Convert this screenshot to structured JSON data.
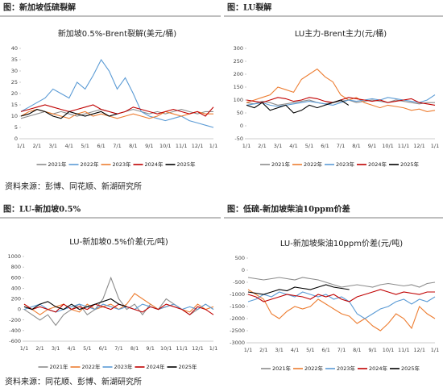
{
  "sources": [
    "资料来源：彭博、同花顺、新湖研究所",
    "资料来源：同花顺、彭博、新湖研究所"
  ],
  "chart_data": [
    {
      "type": "line",
      "panel_title": "图：新加坡低硫裂解",
      "title": "新加坡0.5%-Brent裂解(美元/桶)",
      "categories": [
        "1/1",
        null,
        "2/1",
        null,
        "3/1",
        null,
        "4/1",
        null,
        "5/1",
        null,
        "6/1",
        null,
        "7/1",
        null,
        "8/1",
        null,
        "9/1",
        null,
        "10/1",
        null,
        "11/1",
        null,
        "12/1",
        null,
        "1/1"
      ],
      "ylim": [
        0,
        40
      ],
      "yticks": [
        0,
        5,
        10,
        15,
        20,
        25,
        30,
        35,
        40
      ],
      "series": [
        {
          "name": "2021年",
          "color": "#8c8c8c",
          "values": [
            9,
            10,
            11,
            12,
            11,
            12,
            11,
            10,
            11,
            12,
            13,
            12,
            11,
            12,
            13,
            12,
            11,
            12,
            11,
            12,
            13,
            12,
            11,
            12,
            12
          ]
        },
        {
          "name": "2022年",
          "color": "#5b9bd5",
          "values": [
            12,
            14,
            16,
            18,
            22,
            20,
            18,
            25,
            22,
            28,
            35,
            30,
            22,
            27,
            20,
            12,
            10,
            9,
            8,
            9,
            10,
            8,
            7,
            6,
            5
          ]
        },
        {
          "name": "2023年",
          "color": "#ed7d31",
          "values": [
            10,
            12,
            13,
            12,
            11,
            10,
            9,
            11,
            12,
            10,
            11,
            10,
            9,
            10,
            11,
            10,
            9,
            10,
            12,
            11,
            10,
            11,
            12,
            11,
            11
          ]
        },
        {
          "name": "2024年",
          "color": "#c00000",
          "values": [
            12,
            13,
            14,
            15,
            14,
            13,
            12,
            13,
            14,
            15,
            13,
            12,
            11,
            12,
            14,
            13,
            12,
            11,
            12,
            13,
            12,
            11,
            12,
            10,
            14
          ]
        },
        {
          "name": "2025年",
          "color": "#000000",
          "values": [
            10,
            11,
            13,
            12,
            10,
            9,
            12,
            11,
            10,
            11,
            12,
            10,
            11,
            null,
            null,
            null,
            null,
            null,
            null,
            null,
            null,
            null,
            null,
            null,
            null
          ]
        }
      ]
    },
    {
      "type": "line",
      "panel_title": "图：LU裂解",
      "title": "LU主力-Brent主力(元/桶)",
      "categories": [
        "1/1",
        null,
        "2/1",
        null,
        "3/1",
        null,
        "4/1",
        null,
        "5/1",
        null,
        "6/1",
        null,
        "7/1",
        null,
        "8/1",
        null,
        "9/1",
        null,
        "10/1",
        null,
        "11/1",
        null,
        "12/1",
        null,
        "1/1"
      ],
      "ylim": [
        -50,
        300
      ],
      "yticks": [
        -50,
        0,
        50,
        100,
        150,
        200,
        250,
        300
      ],
      "series": [
        {
          "name": "2021年",
          "color": "#8c8c8c",
          "values": [
            90,
            85,
            95,
            90,
            80,
            85,
            90,
            95,
            100,
            90,
            85,
            90,
            95,
            100,
            90,
            95,
            100,
            95,
            90,
            100,
            95,
            90,
            85,
            90,
            90
          ]
        },
        {
          "name": "2022年",
          "color": "#ed7d31",
          "values": [
            90,
            100,
            110,
            120,
            150,
            140,
            130,
            180,
            200,
            220,
            190,
            170,
            120,
            100,
            110,
            90,
            80,
            70,
            80,
            75,
            70,
            60,
            65,
            55,
            60
          ]
        },
        {
          "name": "2023年",
          "color": "#5b9bd5",
          "values": [
            80,
            85,
            90,
            80,
            75,
            80,
            85,
            90,
            95,
            90,
            85,
            80,
            90,
            100,
            95,
            100,
            105,
            100,
            110,
            105,
            100,
            95,
            90,
            100,
            120
          ]
        },
        {
          "name": "2024年",
          "color": "#c00000",
          "values": [
            100,
            95,
            90,
            100,
            110,
            105,
            95,
            100,
            110,
            105,
            95,
            90,
            100,
            110,
            105,
            100,
            95,
            100,
            90,
            95,
            100,
            105,
            90,
            85,
            80
          ]
        },
        {
          "name": "2025年",
          "color": "#000000",
          "values": [
            80,
            70,
            90,
            60,
            70,
            80,
            50,
            60,
            80,
            70,
            80,
            90,
            100,
            80,
            null,
            null,
            null,
            null,
            null,
            null,
            null,
            null,
            null,
            null,
            null
          ]
        }
      ]
    },
    {
      "type": "line",
      "panel_title": "图：LU-新加坡0.5%",
      "title": "LU-新加坡0.5%价差(元/吨)",
      "categories": [
        "1/1",
        null,
        "2/1",
        null,
        "3/1",
        null,
        "4/1",
        null,
        "5/1",
        null,
        "6/1",
        null,
        "7/1",
        null,
        "8/1",
        null,
        "9/1",
        null,
        "10/1",
        null,
        "11/1",
        null,
        "12/1",
        null,
        "1/1"
      ],
      "ylim": [
        -600,
        1000
      ],
      "yticks": [
        -600,
        -400,
        -200,
        0,
        200,
        400,
        600,
        800,
        1000
      ],
      "series": [
        {
          "name": "2021年",
          "color": "#8c8c8c",
          "values": [
            0,
            -100,
            -200,
            -100,
            -300,
            -100,
            0,
            100,
            -100,
            0,
            200,
            600,
            200,
            0,
            100,
            -100,
            100,
            0,
            200,
            100,
            0,
            -100,
            0,
            100,
            0
          ]
        },
        {
          "name": "2022年",
          "color": "#ed7d31",
          "values": [
            100,
            0,
            -100,
            0,
            50,
            100,
            0,
            -50,
            100,
            0,
            50,
            100,
            0,
            100,
            300,
            200,
            100,
            0,
            50,
            100,
            0,
            -50,
            100,
            0,
            50
          ]
        },
        {
          "name": "2023年",
          "color": "#5b9bd5",
          "values": [
            0,
            50,
            100,
            0,
            -50,
            0,
            50,
            100,
            50,
            0,
            100,
            50,
            0,
            50,
            0,
            100,
            50,
            0,
            50,
            100,
            0,
            50,
            0,
            100,
            0
          ]
        },
        {
          "name": "2024年",
          "color": "#c00000",
          "values": [
            100,
            0,
            50,
            0,
            -50,
            100,
            0,
            50,
            0,
            100,
            50,
            0,
            100,
            50,
            0,
            -50,
            50,
            0,
            100,
            50,
            0,
            -100,
            50,
            0,
            -100
          ]
        },
        {
          "name": "2025年",
          "color": "#000000",
          "values": [
            50,
            0,
            100,
            150,
            50,
            0,
            100,
            0,
            50,
            100,
            150,
            200,
            100,
            50,
            null,
            null,
            null,
            null,
            null,
            null,
            null,
            null,
            null,
            null,
            null
          ]
        }
      ]
    },
    {
      "type": "line",
      "panel_title": "图：低硫-新加坡柴油10ppm价差",
      "title": "LU-新加坡柴油10ppm价差(元/吨)",
      "categories": [
        "1/1",
        null,
        "2/1",
        null,
        "3/1",
        null,
        "4/1",
        null,
        "5/1",
        null,
        "6/1",
        null,
        "7/1",
        null,
        "8/1",
        null,
        "9/1",
        null,
        "10/1",
        null,
        "11/1",
        null,
        "12/1",
        null,
        "1/1"
      ],
      "ylim": [
        -3000,
        500
      ],
      "yticks": [
        -3000,
        -2500,
        -2000,
        -1500,
        -1000,
        -500,
        0,
        500
      ],
      "series": [
        {
          "name": "2021年",
          "color": "#8c8c8c",
          "values": [
            -300,
            -350,
            -400,
            -350,
            -300,
            -350,
            -400,
            -300,
            -350,
            -400,
            -500,
            -600,
            -700,
            -650,
            -600,
            -650,
            -700,
            -600,
            -550,
            -600,
            -650,
            -600,
            -700,
            -550,
            -500
          ]
        },
        {
          "name": "2022年",
          "color": "#ed7d31",
          "values": [
            -800,
            -1000,
            -1200,
            -1800,
            -2000,
            -1700,
            -1500,
            -1600,
            -1500,
            -1200,
            -1400,
            -1600,
            -1800,
            -1900,
            -2200,
            -2000,
            -2300,
            -2500,
            -2200,
            -1800,
            -2000,
            -2400,
            -1500,
            -1800,
            -2000
          ]
        },
        {
          "name": "2023年",
          "color": "#5b9bd5",
          "values": [
            -1300,
            -1200,
            -1000,
            -1100,
            -900,
            -1000,
            -1100,
            -900,
            -1000,
            -1100,
            -1000,
            -1200,
            -1100,
            -1300,
            -1800,
            -2000,
            -1800,
            -1600,
            -1500,
            -1300,
            -1200,
            -1400,
            -1200,
            -1300,
            -1100
          ]
        },
        {
          "name": "2024年",
          "color": "#c00000",
          "values": [
            -1000,
            -1100,
            -1300,
            -1200,
            -1100,
            -1000,
            -1050,
            -1100,
            -1200,
            -1000,
            -1100,
            -1000,
            -1200,
            -1300,
            -1100,
            -1000,
            -900,
            -800,
            -900,
            -1000,
            -900,
            -950,
            -1000,
            -900,
            -900
          ]
        },
        {
          "name": "2025年",
          "color": "#000000",
          "values": [
            -900,
            -950,
            -1000,
            -900,
            -800,
            -850,
            -700,
            -750,
            -800,
            -700,
            -600,
            -700,
            -750,
            -800,
            null,
            null,
            null,
            null,
            null,
            null,
            null,
            null,
            null,
            null,
            null
          ]
        }
      ]
    }
  ]
}
